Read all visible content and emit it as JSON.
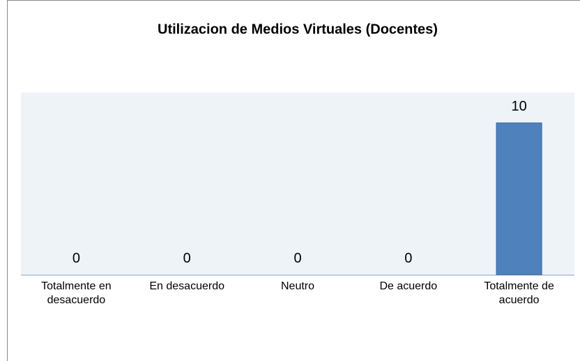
{
  "chart_data": {
    "type": "bar",
    "title": "Utilizacion de Medios Virtuales (Docentes)",
    "categories": [
      "Totalmente en desacuerdo",
      "En desacuerdo",
      "Neutro",
      "De acuerdo",
      "Totalmente de acuerdo"
    ],
    "values": [
      0,
      0,
      0,
      0,
      10
    ],
    "color": "#4f81bd",
    "ylim": [
      0,
      12
    ]
  }
}
